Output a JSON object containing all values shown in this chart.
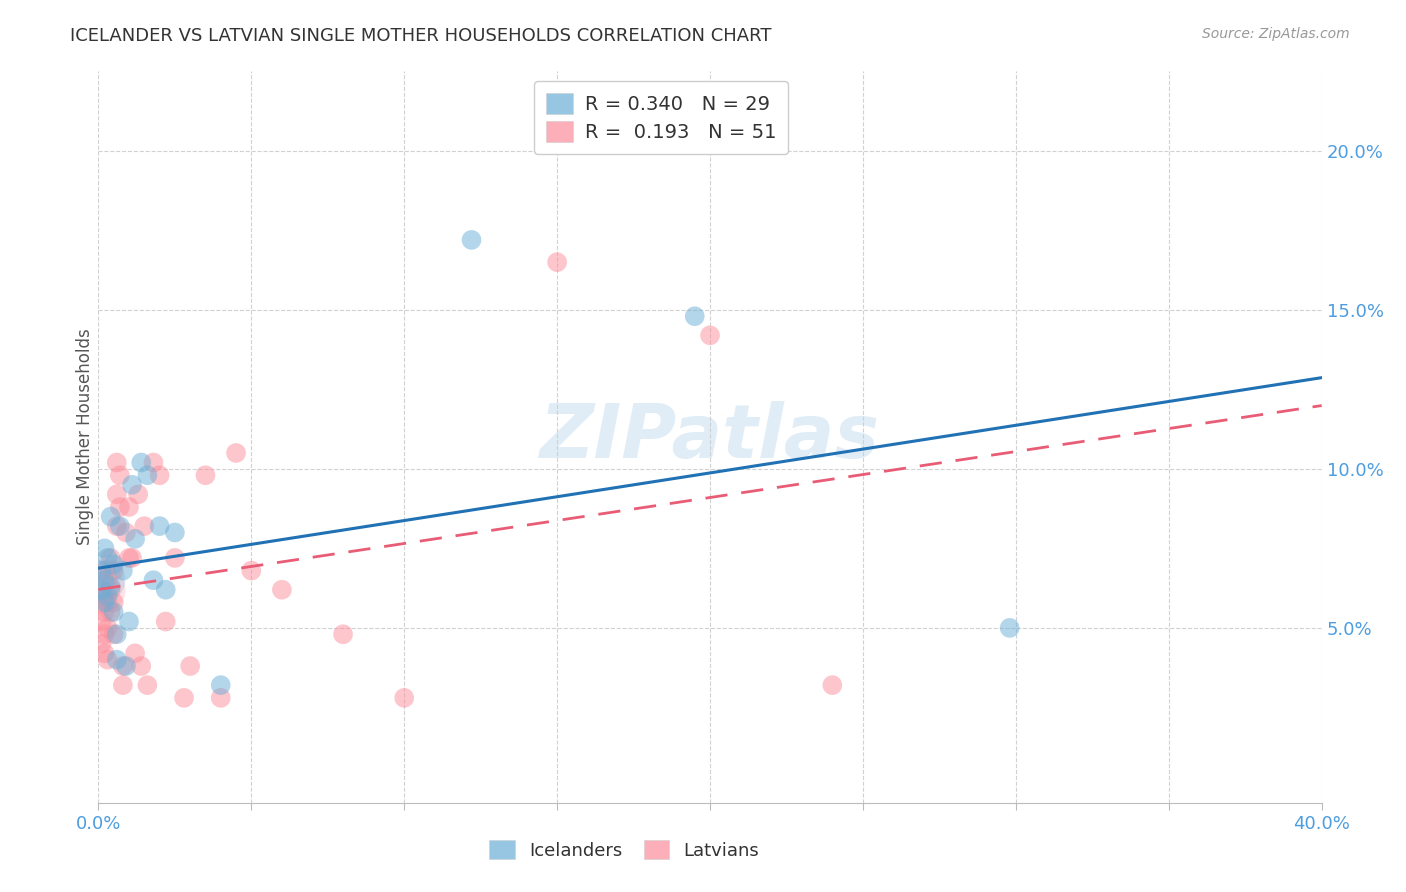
{
  "title": "ICELANDER VS LATVIAN SINGLE MOTHER HOUSEHOLDS CORRELATION CHART",
  "source": "Source: ZipAtlas.com",
  "ylabel": "Single Mother Households",
  "xlim": [
    0.0,
    0.4
  ],
  "ylim": [
    -0.005,
    0.225
  ],
  "icelander_color": "#6baed6",
  "latvian_color": "#fc8d9a",
  "icelander_line_color": "#2171b5",
  "latvian_line_color": "#e85d75",
  "icelander_R": 0.34,
  "icelander_N": 29,
  "latvian_R": 0.193,
  "latvian_N": 51,
  "icelander_x": [
    0.001,
    0.001,
    0.002,
    0.002,
    0.002,
    0.003,
    0.003,
    0.004,
    0.004,
    0.005,
    0.005,
    0.006,
    0.006,
    0.007,
    0.008,
    0.009,
    0.01,
    0.011,
    0.012,
    0.014,
    0.016,
    0.018,
    0.02,
    0.022,
    0.025,
    0.04,
    0.122,
    0.195,
    0.298
  ],
  "icelander_y": [
    0.068,
    0.062,
    0.075,
    0.058,
    0.065,
    0.072,
    0.06,
    0.085,
    0.063,
    0.07,
    0.055,
    0.048,
    0.04,
    0.082,
    0.068,
    0.038,
    0.052,
    0.095,
    0.078,
    0.102,
    0.098,
    0.065,
    0.082,
    0.062,
    0.08,
    0.032,
    0.172,
    0.148,
    0.05
  ],
  "latvian_x": [
    0.001,
    0.001,
    0.001,
    0.001,
    0.002,
    0.002,
    0.002,
    0.002,
    0.002,
    0.003,
    0.003,
    0.003,
    0.003,
    0.004,
    0.004,
    0.004,
    0.005,
    0.005,
    0.005,
    0.006,
    0.006,
    0.006,
    0.007,
    0.007,
    0.008,
    0.008,
    0.009,
    0.01,
    0.01,
    0.011,
    0.012,
    0.013,
    0.014,
    0.015,
    0.016,
    0.018,
    0.02,
    0.022,
    0.025,
    0.028,
    0.03,
    0.035,
    0.04,
    0.045,
    0.05,
    0.06,
    0.08,
    0.1,
    0.15,
    0.2,
    0.24
  ],
  "latvian_y": [
    0.062,
    0.058,
    0.052,
    0.045,
    0.068,
    0.06,
    0.055,
    0.048,
    0.042,
    0.065,
    0.058,
    0.05,
    0.04,
    0.072,
    0.062,
    0.055,
    0.068,
    0.058,
    0.048,
    0.102,
    0.092,
    0.082,
    0.098,
    0.088,
    0.038,
    0.032,
    0.08,
    0.088,
    0.072,
    0.072,
    0.042,
    0.092,
    0.038,
    0.082,
    0.032,
    0.102,
    0.098,
    0.052,
    0.072,
    0.028,
    0.038,
    0.098,
    0.028,
    0.105,
    0.068,
    0.062,
    0.048,
    0.028,
    0.165,
    0.142,
    0.032
  ],
  "watermark": "ZIPatlas",
  "background_color": "#ffffff",
  "grid_color": "#cccccc",
  "title_color": "#333333",
  "right_tick_color": "#4d9de0",
  "bottom_tick_color": "#4d9de0"
}
